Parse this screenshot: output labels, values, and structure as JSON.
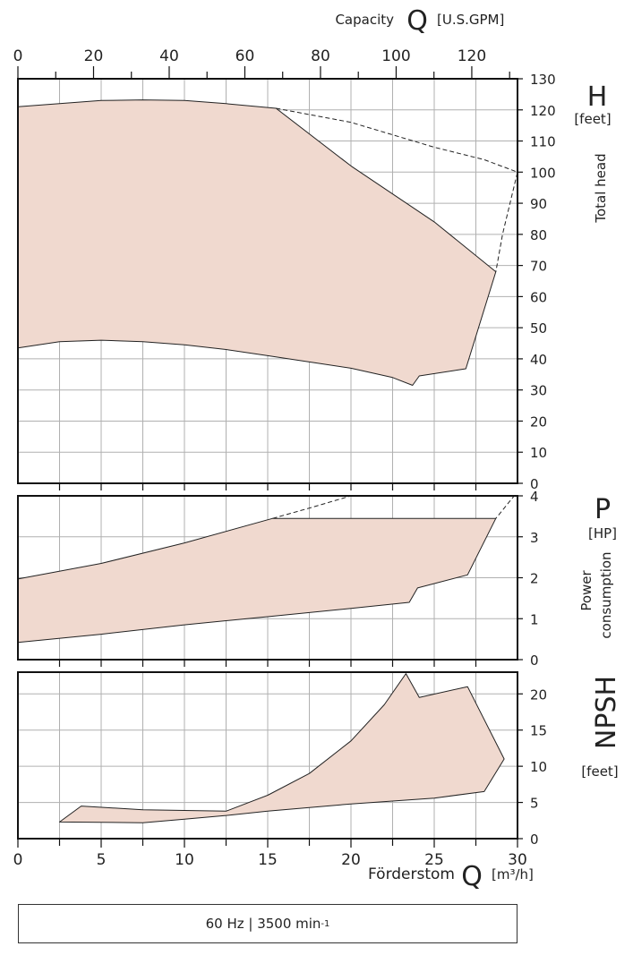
{
  "header": {
    "capacity_label": "Capacity",
    "capacity_symbol": "Q",
    "capacity_unit": "[U.S.GPM]"
  },
  "footer": {
    "flow_label": "Förderstom",
    "flow_symbol": "Q",
    "flow_unit": "[m³/h]",
    "speed_main": "60 Hz | 3500 min",
    "speed_exp": "-1"
  },
  "colors": {
    "fill": "#f0d9cf",
    "grid": "#b0b0b0",
    "line": "#222222",
    "frame": "#111111"
  },
  "chart_data": [
    {
      "name": "head",
      "type": "area",
      "symbol": "H",
      "unit": "[feet]",
      "axis_label": "Total head",
      "x_unit": "m³/h",
      "xlim": [
        0,
        30
      ],
      "ylim": [
        0,
        130
      ],
      "yticks": [
        0,
        10,
        20,
        30,
        40,
        50,
        60,
        70,
        80,
        90,
        100,
        110,
        120,
        130
      ],
      "x_top_gpm": [
        0,
        20,
        40,
        60,
        80,
        100,
        120
      ],
      "grid": true,
      "upper": [
        [
          0,
          121
        ],
        [
          2.5,
          122
        ],
        [
          5,
          123
        ],
        [
          7.5,
          123.2
        ],
        [
          10,
          123
        ],
        [
          12.5,
          122
        ],
        [
          15.5,
          120.5
        ],
        [
          20,
          102
        ],
        [
          25,
          84
        ],
        [
          28.7,
          68
        ]
      ],
      "lower": [
        [
          0,
          43.5
        ],
        [
          2.5,
          45.5
        ],
        [
          5,
          46
        ],
        [
          7.5,
          45.5
        ],
        [
          10,
          44.5
        ],
        [
          12.5,
          43
        ],
        [
          15,
          41
        ],
        [
          17.5,
          39
        ],
        [
          20,
          37
        ],
        [
          22.5,
          34
        ],
        [
          23.7,
          31.5
        ],
        [
          24.1,
          34.5
        ],
        [
          26.9,
          36.8
        ],
        [
          28.7,
          68
        ]
      ],
      "dashed": [
        [
          15.5,
          120.5
        ],
        [
          20,
          116
        ],
        [
          25,
          108
        ],
        [
          28,
          104
        ],
        [
          30,
          100
        ],
        [
          29.1,
          80
        ],
        [
          28.7,
          68
        ]
      ]
    },
    {
      "name": "power",
      "type": "area",
      "symbol": "P",
      "unit": "[HP]",
      "axis_label": "Power consumption",
      "x_unit": "m³/h",
      "xlim": [
        0,
        30
      ],
      "ylim": [
        0,
        4
      ],
      "yticks": [
        0,
        1,
        2,
        3,
        4
      ],
      "grid": true,
      "upper": [
        [
          0,
          1.97
        ],
        [
          5,
          2.35
        ],
        [
          10,
          2.85
        ],
        [
          15.3,
          3.45
        ],
        [
          28.7,
          3.45
        ]
      ],
      "lower": [
        [
          0,
          0.42
        ],
        [
          5,
          0.62
        ],
        [
          10,
          0.85
        ],
        [
          15,
          1.05
        ],
        [
          20,
          1.25
        ],
        [
          23.5,
          1.4
        ],
        [
          24,
          1.75
        ],
        [
          27,
          2.07
        ],
        [
          28.7,
          3.45
        ]
      ],
      "dashed": [
        [
          15.3,
          3.45
        ],
        [
          17.5,
          3.7
        ],
        [
          20,
          4.0
        ],
        [
          29.8,
          4.0
        ],
        [
          28.7,
          3.45
        ]
      ]
    },
    {
      "name": "npsh",
      "type": "area",
      "symbol": "NPSH",
      "unit": "[feet]",
      "x_unit": "m³/h",
      "xlim": [
        0,
        30
      ],
      "ylim": [
        0,
        23
      ],
      "yticks": [
        0,
        5,
        10,
        15,
        20
      ],
      "xticks": [
        0,
        5,
        10,
        15,
        20,
        25,
        30
      ],
      "grid": true,
      "upper": [
        [
          2.5,
          2.3
        ],
        [
          3.8,
          4.5
        ],
        [
          7.5,
          4.0
        ],
        [
          12.5,
          3.8
        ],
        [
          15,
          6.0
        ],
        [
          17.5,
          9.0
        ],
        [
          20,
          13.5
        ],
        [
          22,
          18.5
        ],
        [
          23.3,
          22.8
        ],
        [
          24.1,
          19.5
        ],
        [
          27,
          21.0
        ],
        [
          29.2,
          11.0
        ]
      ],
      "lower": [
        [
          2.5,
          2.3
        ],
        [
          7.5,
          2.2
        ],
        [
          10,
          2.7
        ],
        [
          12.5,
          3.2
        ],
        [
          15,
          3.8
        ],
        [
          20,
          4.8
        ],
        [
          25,
          5.6
        ],
        [
          28,
          6.5
        ],
        [
          29.2,
          11.0
        ]
      ]
    }
  ]
}
